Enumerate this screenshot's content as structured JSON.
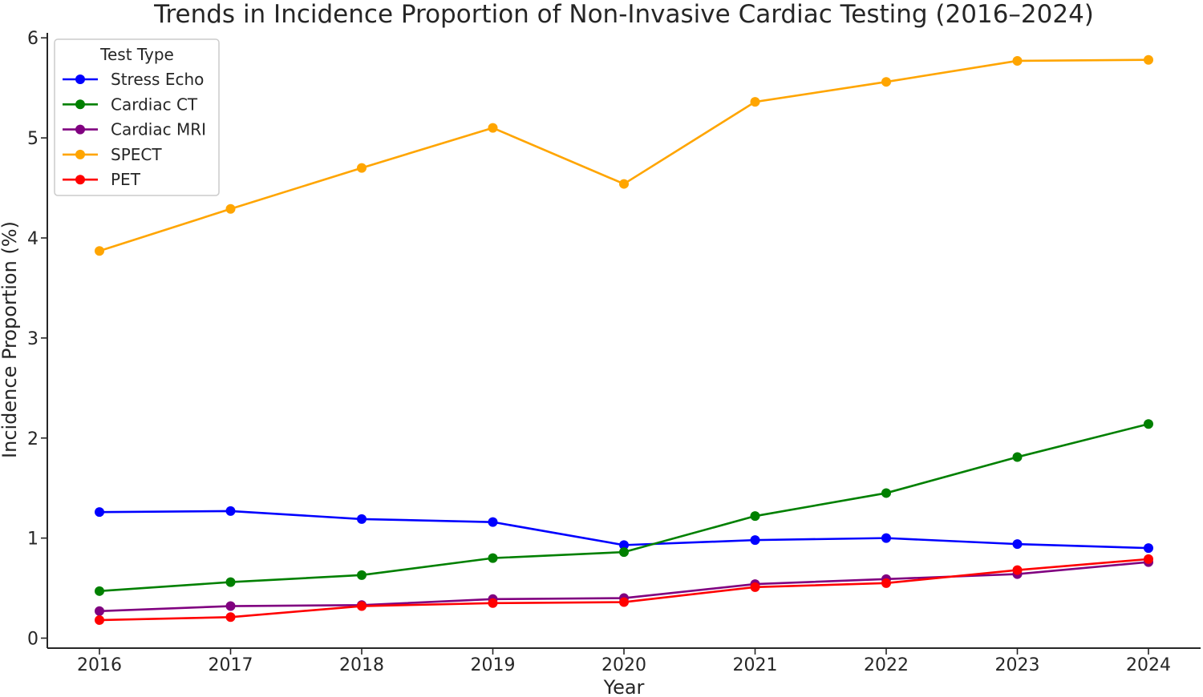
{
  "chart_data": {
    "type": "line",
    "title": "Trends in Incidence Proportion of Non-Invasive Cardiac Testing (2016–2024)",
    "xlabel": "Year",
    "ylabel": "Incidence Proportion (%)",
    "x": [
      2016,
      2017,
      2018,
      2019,
      2020,
      2021,
      2022,
      2023,
      2024
    ],
    "x_tick_labels": [
      "2016",
      "2017",
      "2018",
      "2019",
      "2020",
      "2021",
      "2022",
      "2023",
      "2024"
    ],
    "y_ticks": [
      0,
      1,
      2,
      3,
      4,
      5,
      6
    ],
    "y_tick_labels": [
      "0",
      "1",
      "2",
      "3",
      "4",
      "5",
      "6"
    ],
    "ylim": [
      -0.1,
      6.05
    ],
    "grid": false,
    "legend": {
      "title": "Test Type",
      "placement": "top-left"
    },
    "series": [
      {
        "name": "Stress Echo",
        "color": "#0000ff",
        "values": [
          1.26,
          1.27,
          1.19,
          1.16,
          0.93,
          0.98,
          1.0,
          0.94,
          0.9
        ]
      },
      {
        "name": "Cardiac CT",
        "color": "#008000",
        "values": [
          0.47,
          0.56,
          0.63,
          0.8,
          0.86,
          1.22,
          1.45,
          1.81,
          2.14
        ]
      },
      {
        "name": "Cardiac MRI",
        "color": "#800080",
        "values": [
          0.27,
          0.32,
          0.33,
          0.39,
          0.4,
          0.54,
          0.59,
          0.64,
          0.76
        ]
      },
      {
        "name": "SPECT",
        "color": "#ffa500",
        "values": [
          3.87,
          4.29,
          4.7,
          5.1,
          4.54,
          5.36,
          5.56,
          5.77,
          5.78
        ]
      },
      {
        "name": "PET",
        "color": "#ff0000",
        "values": [
          0.18,
          0.21,
          0.32,
          0.35,
          0.36,
          0.51,
          0.55,
          0.68,
          0.79
        ]
      }
    ]
  }
}
